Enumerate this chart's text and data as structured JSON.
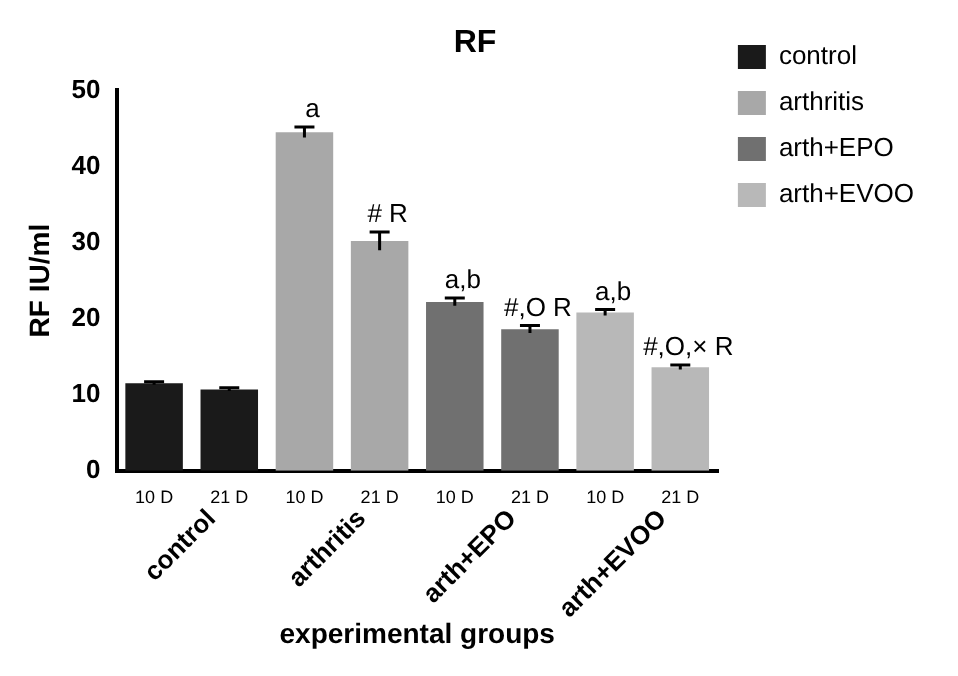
{
  "chart_data": {
    "type": "bar",
    "title": "RF",
    "xlabel": "experimental groups",
    "ylabel": "RF IU/ml",
    "categories": [
      "10 D",
      "21 D",
      "10 D",
      "21 D",
      "10 D",
      "21 D",
      "10 D",
      "21 D"
    ],
    "series": [
      {
        "name": "control",
        "color": "#1a1a1a",
        "values": [
          11.5,
          10.7,
          null,
          null,
          null,
          null,
          null,
          null
        ],
        "errors": [
          0.2,
          0.2,
          null,
          null,
          null,
          null,
          null,
          null
        ]
      },
      {
        "name": "arthritis",
        "color": "#a8a8a8",
        "values": [
          null,
          null,
          44.5,
          30.2,
          null,
          null,
          null,
          null
        ],
        "errors": [
          null,
          null,
          0.7,
          1.2,
          null,
          null,
          null,
          null
        ],
        "value_labels": [
          null,
          null,
          "a",
          "# R",
          null,
          null,
          null,
          null
        ]
      },
      {
        "name": "arth+EPO",
        "color": "#707070",
        "values": [
          null,
          null,
          null,
          null,
          22.2,
          18.6,
          null,
          null
        ],
        "errors": [
          null,
          null,
          null,
          null,
          0.5,
          0.5,
          null,
          null
        ],
        "value_labels": [
          null,
          null,
          null,
          null,
          "a,b",
          "#,O R",
          null,
          null
        ]
      },
      {
        "name": "arth+EVOO",
        "color": "#b8b8b8",
        "values": [
          null,
          null,
          null,
          null,
          null,
          null,
          20.8,
          13.6
        ],
        "errors": [
          null,
          null,
          null,
          null,
          null,
          null,
          0.4,
          0.3
        ],
        "value_labels": [
          null,
          null,
          null,
          null,
          null,
          null,
          "a,b",
          "#,O,× R"
        ]
      }
    ],
    "ylim": [
      0,
      50
    ],
    "yticks": [
      0,
      10,
      20,
      30,
      40,
      50
    ],
    "grid": false,
    "legend": "top right"
  }
}
